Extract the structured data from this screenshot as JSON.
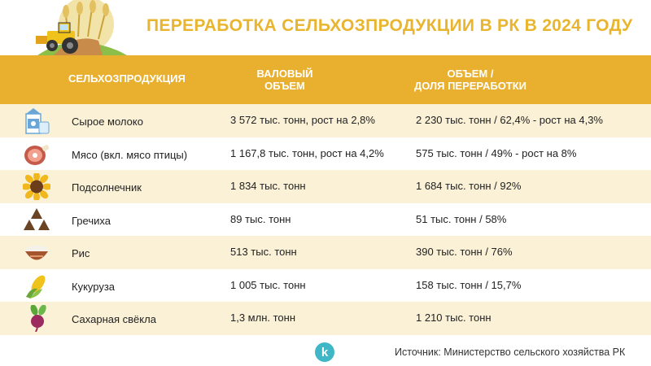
{
  "title": "ПЕРЕРАБОТКА СЕЛЬХОЗПРОДУКЦИИ В РК В 2024 ГОДУ",
  "colors": {
    "accent": "#e9b030",
    "title": "#eab52e",
    "row_alt": "#fbf1d6"
  },
  "header": {
    "col1": "СЕЛЬХОЗПРОДУКЦИЯ",
    "col2_line1": "ВАЛОВЫЙ",
    "col2_line2": "ОБЪЕМ",
    "col3_line1": "ОБЪЕМ /",
    "col3_line2": "ДОЛЯ ПЕРЕРАБОТКИ"
  },
  "rows": [
    {
      "icon": "milk-carton-icon",
      "name": "Сырое молоко",
      "gross": "3 572 тыс. тонн, рост на 2,8%",
      "processed": "2 230 тыс. тонн / 62,4% - рост на 4,3%"
    },
    {
      "icon": "ham-icon",
      "name": "Мясо (вкл. мясо птицы)",
      "gross": "1 167,8 тыс. тонн, рост на 4,2%",
      "processed": "575 тыс. тонн / 49% - рост на 8%"
    },
    {
      "icon": "sunflower-icon",
      "name": "Подсолнечник",
      "gross": "1 834 тыс. тонн",
      "processed": "1 684 тыс. тонн / 92%"
    },
    {
      "icon": "buckwheat-icon",
      "name": "Гречиха",
      "gross": "89 тыс. тонн",
      "processed": "51 тыс. тонн / 58%"
    },
    {
      "icon": "rice-bowl-icon",
      "name": "Рис",
      "gross": "513 тыс. тонн",
      "processed": "390 тыс. тонн / 76%"
    },
    {
      "icon": "corn-icon",
      "name": "Кукуруза",
      "gross": "1 005 тыс. тонн",
      "processed": "158 тыс. тонн / 15,7%"
    },
    {
      "icon": "beet-icon",
      "name": "Сахарная свёкла",
      "gross": "1,3 млн. тонн",
      "processed": "1 210 тыс. тонн"
    }
  ],
  "logo_letter": "k",
  "source": "Источник: Министерство сельского хозяйства РК"
}
